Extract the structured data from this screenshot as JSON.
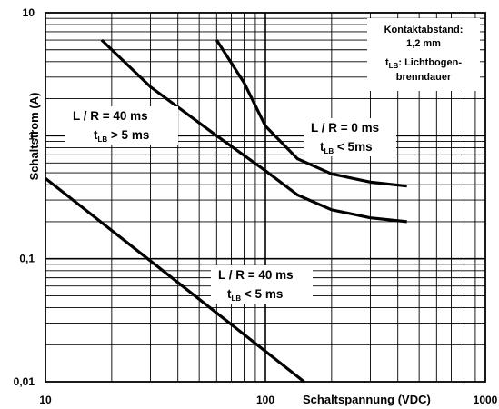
{
  "chart_data": {
    "type": "line",
    "title": "",
    "xlabel": "Schaltspannung (VDC)",
    "ylabel": "Schaltstrom (A)",
    "x_scale": "log",
    "y_scale": "log",
    "xlim": [
      10,
      1000
    ],
    "ylim": [
      0.01,
      10
    ],
    "grid": true,
    "x_ticks": [
      {
        "value": 10,
        "label": "10"
      },
      {
        "value": 100,
        "label": "100"
      },
      {
        "value": 1000,
        "label": "1000"
      }
    ],
    "y_ticks": [
      {
        "value": 0.01,
        "label": "0,01"
      },
      {
        "value": 0.1,
        "label": "0,1"
      },
      {
        "value": 1,
        "label": "1"
      },
      {
        "value": 10,
        "label": "10"
      }
    ],
    "series": [
      {
        "points": [
          [
            18,
            6
          ],
          [
            30,
            2.5
          ],
          [
            60,
            1.0
          ],
          [
            100,
            0.52
          ],
          [
            140,
            0.33
          ],
          [
            200,
            0.25
          ],
          [
            300,
            0.215
          ],
          [
            440,
            0.2
          ]
        ]
      },
      {
        "points": [
          [
            60,
            6
          ],
          [
            80,
            2.7
          ],
          [
            100,
            1.2
          ],
          [
            140,
            0.65
          ],
          [
            200,
            0.49
          ],
          [
            300,
            0.42
          ],
          [
            440,
            0.39
          ]
        ]
      },
      {
        "points": [
          [
            10,
            0.45
          ],
          [
            150,
            0.01
          ]
        ]
      }
    ],
    "annotations": {
      "curve_a_line1": "L / R = 40 ms",
      "curve_a_line2_pre": "t",
      "curve_a_line2_sub": "LB",
      "curve_a_line2_post": " > 5 ms",
      "curve_b_line1": "L / R = 0 ms",
      "curve_b_line2_pre": "t",
      "curve_b_line2_sub": "LB",
      "curve_b_line2_post": " < 5ms",
      "curve_c_line1": "L / R = 40 ms",
      "curve_c_line2_pre": "t",
      "curve_c_line2_sub": "LB",
      "curve_c_line2_post": " < 5 ms",
      "note_line1": "Kontaktabstand:",
      "note_line2": "1,2 mm",
      "note_line3_pre": "t",
      "note_line3_sub": "LB",
      "note_line3_post": ": Lichtbogen-",
      "note_line4": "brenndauer"
    },
    "line_color": "#000000",
    "grid_color": "#000000",
    "background": "#ffffff"
  }
}
